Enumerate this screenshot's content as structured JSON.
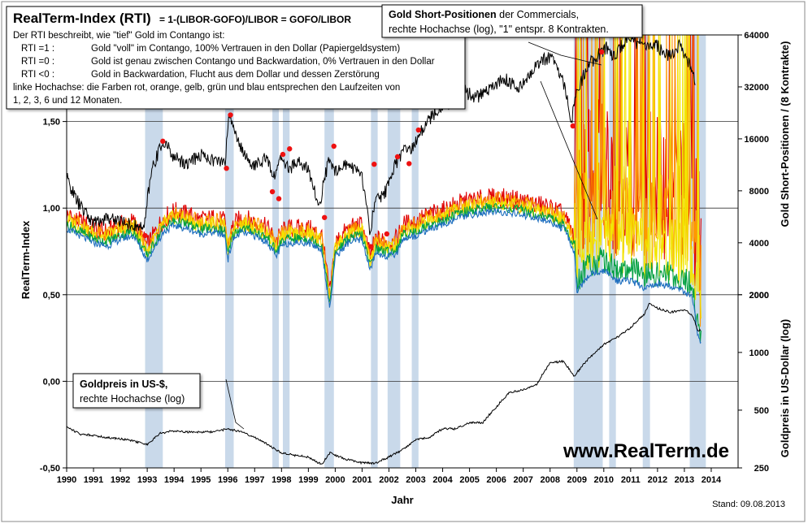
{
  "chart_data": {
    "type": "line",
    "title": "RealTerm-Index (RTI)",
    "formula": "= 1-(LIBOR-GOFO)/LIBOR = GOFO/LIBOR",
    "description_lines": [
      "Der RTI beschreibt, wie \"tief\" Gold im Contango ist:"
    ],
    "legend_rows": [
      {
        "label": "RTI =1 :",
        "text": "Gold \"voll\" im Contango, 100% Vertrauen in den Dollar (Papiergeldsystem)"
      },
      {
        "label": "RTI =0 :",
        "text": "Gold ist genau zwischen Contango und Backwardation, 0% Vertrauen in den Dollar"
      },
      {
        "label": "RTI <0 :",
        "text": "Gold in Backwardation, Flucht aus dem Dollar und dessen Zerstörung"
      }
    ],
    "note_lines": [
      "linke Hochachse: die Farben rot, orange, gelb, grün und blau entsprechen den Laufzeiten von",
      "1, 2, 3, 6 und 12 Monaten."
    ],
    "callout_short": {
      "bold": "Gold Short-Positionen",
      "rest": " der Commercials,",
      "line2": "rechte Hochachse (log), \"1\" entspr. 8 Kontrakten."
    },
    "callout_gold": {
      "bold": "Goldpreis in US-$,",
      "line2": "rechte Hochachse (log)"
    },
    "watermark": "www.RealTerm.de",
    "stand": "Stand:  09.08.2013",
    "xlabel": "Jahr",
    "ylabel_left": "RealTerm-Index",
    "ylabel_right_top": "Gold Short-Positionen / (8 Kontrakte)",
    "ylabel_right_bottom": "Goldpreis in US-Dollar (log)",
    "x_ticks": [
      "1990",
      "1991",
      "1992",
      "1993",
      "1994",
      "1995",
      "1996",
      "1997",
      "1998",
      "1999",
      "2000",
      "2001",
      "2002",
      "2003",
      "2004",
      "2005",
      "2006",
      "2007",
      "2008",
      "2009",
      "2010",
      "2011",
      "2012",
      "2013",
      "2014"
    ],
    "x_range": [
      1990,
      2015
    ],
    "y_left_ticks": [
      "-0,50",
      "0,00",
      "0,50",
      "1,00",
      "1,50"
    ],
    "y_left_values": [
      -0.5,
      0.0,
      0.5,
      1.0,
      1.5
    ],
    "y_left_range": [
      -0.5,
      2.0
    ],
    "y_right_top_ticks": [
      "2000",
      "4000",
      "8000",
      "16000",
      "32000",
      "64000"
    ],
    "y_right_top_values": [
      2000,
      4000,
      8000,
      16000,
      32000,
      64000
    ],
    "y_right_bottom_ticks": [
      "250",
      "500",
      "1000",
      "2000"
    ],
    "y_right_bottom_values": [
      250,
      500,
      1000,
      2000
    ],
    "shaded_periods": [
      [
        1992.92,
        1993.58
      ],
      [
        1995.9,
        1996.22
      ],
      [
        1997.66,
        1997.9
      ],
      [
        1998.05,
        1998.3
      ],
      [
        1999.6,
        1999.95
      ],
      [
        2001.33,
        2001.58
      ],
      [
        2001.95,
        2002.42
      ],
      [
        2002.85,
        2003.1
      ],
      [
        2008.88,
        2009.96
      ],
      [
        2010.2,
        2010.45
      ],
      [
        2011.45,
        2011.72
      ],
      [
        2013.2,
        2013.8
      ]
    ],
    "series_colors": {
      "rti_1m": "#e00000",
      "rti_2m": "#ff9900",
      "rti_3m": "#f2e600",
      "rti_6m": "#00a040",
      "rti_12m": "#1f6fbf",
      "short": "#000000",
      "gold": "#000000",
      "marker": "#ee1111",
      "shade": "#c9d9ea"
    },
    "series_names": [
      "1",
      "2",
      "3",
      "6",
      "12"
    ],
    "rti_12m": {
      "x": [
        1990.0,
        1990.5,
        1991.0,
        1991.5,
        1992.0,
        1992.5,
        1993.0,
        1993.3,
        1993.6,
        1994.0,
        1994.5,
        1995.0,
        1995.5,
        1995.9,
        1996.0,
        1996.2,
        1996.5,
        1997.0,
        1997.5,
        1997.8,
        1998.0,
        1998.3,
        1998.5,
        1999.0,
        1999.5,
        1999.8,
        2000.0,
        2000.5,
        2001.0,
        2001.3,
        2001.5,
        2002.0,
        2002.3,
        2002.5,
        2003.0,
        2003.5,
        2004.0,
        2004.5,
        2005.0,
        2005.5,
        2006.0,
        2006.5,
        2007.0,
        2007.5,
        2008.0,
        2008.5,
        2008.9,
        2009.0,
        2009.5,
        2010.0,
        2010.5,
        2011.0,
        2011.5,
        2012.0,
        2012.5,
        2013.0,
        2013.3,
        2013.5,
        2013.6
      ],
      "y": [
        0.88,
        0.84,
        0.8,
        0.78,
        0.82,
        0.84,
        0.7,
        0.78,
        0.86,
        0.9,
        0.88,
        0.85,
        0.86,
        0.84,
        0.7,
        0.82,
        0.86,
        0.84,
        0.8,
        0.72,
        0.78,
        0.8,
        0.8,
        0.8,
        0.76,
        0.42,
        0.72,
        0.8,
        0.82,
        0.64,
        0.74,
        0.72,
        0.74,
        0.82,
        0.84,
        0.88,
        0.9,
        0.94,
        0.96,
        0.97,
        0.98,
        0.97,
        0.96,
        0.94,
        0.92,
        0.88,
        0.75,
        0.52,
        0.62,
        0.64,
        0.58,
        0.58,
        0.54,
        0.56,
        0.55,
        0.52,
        0.48,
        0.26,
        0.22
      ]
    },
    "short_positions": {
      "x": [
        1990.0,
        1990.3,
        1990.6,
        1991.0,
        1991.5,
        1992.0,
        1992.5,
        1992.9,
        1993.2,
        1993.6,
        1994.0,
        1994.5,
        1995.0,
        1995.5,
        1995.9,
        1996.05,
        1996.3,
        1996.6,
        1997.0,
        1997.4,
        1997.7,
        1998.0,
        1998.3,
        1998.6,
        1999.0,
        1999.4,
        1999.8,
        2000.0,
        2000.5,
        2001.0,
        2001.3,
        2001.5,
        2001.9,
        2002.2,
        2002.5,
        2002.9,
        2003.3,
        2003.8,
        2004.3,
        2004.8,
        2005.3,
        2005.8,
        2006.3,
        2006.8,
        2007.2,
        2007.6,
        2008.0,
        2008.4,
        2008.8,
        2009.0,
        2009.4,
        2009.8,
        2010.1,
        2010.4,
        2010.8,
        2011.2,
        2011.6,
        2012.0,
        2012.4,
        2012.8,
        2013.1,
        2013.4
      ],
      "y": [
        9500,
        7400,
        6200,
        5200,
        5600,
        5400,
        5000,
        4900,
        11000,
        15500,
        12500,
        11500,
        13000,
        12000,
        11500,
        22000,
        17000,
        13000,
        11000,
        12500,
        9500,
        12500,
        10500,
        12000,
        10500,
        6200,
        12500,
        10500,
        11500,
        9500,
        4600,
        7000,
        8000,
        11000,
        13500,
        14000,
        19000,
        23500,
        26000,
        30000,
        28000,
        32000,
        36000,
        31000,
        37000,
        45000,
        48000,
        38000,
        20000,
        30000,
        42000,
        50000,
        54000,
        48000,
        60000,
        58000,
        57000,
        55000,
        48000,
        56000,
        46000,
        36000
      ]
    },
    "short_markers": {
      "x": [
        1992.92,
        1993.58,
        1995.95,
        1996.1,
        1997.66,
        1997.9,
        1998.05,
        1998.3,
        1999.6,
        1999.95,
        2001.33,
        2001.45,
        2001.92,
        2002.32,
        2002.75,
        2003.1,
        2008.85,
        2009.92
      ],
      "y": [
        4400,
        15500,
        10800,
        22000,
        7900,
        7200,
        13000,
        14000,
        5600,
        14500,
        3800,
        11400,
        4500,
        12600,
        11500,
        18000,
        19000,
        51000
      ]
    },
    "gold_price": {
      "x": [
        1990.0,
        1990.5,
        1991.0,
        1991.5,
        1992.0,
        1992.5,
        1993.0,
        1993.5,
        1994.0,
        1994.5,
        1995.0,
        1995.5,
        1996.0,
        1996.5,
        1997.0,
        1997.5,
        1998.0,
        1998.5,
        1999.0,
        1999.5,
        1999.8,
        2000.0,
        2000.5,
        2001.0,
        2001.5,
        2002.0,
        2002.5,
        2003.0,
        2003.5,
        2004.0,
        2004.5,
        2005.0,
        2005.5,
        2006.0,
        2006.5,
        2007.0,
        2007.5,
        2008.0,
        2008.5,
        2008.9,
        2009.5,
        2010.0,
        2010.5,
        2011.0,
        2011.5,
        2011.7,
        2012.0,
        2012.5,
        2013.0,
        2013.3,
        2013.5,
        2013.6
      ],
      "y": [
        410,
        375,
        370,
        360,
        355,
        345,
        330,
        380,
        390,
        385,
        385,
        385,
        400,
        385,
        360,
        330,
        300,
        290,
        285,
        260,
        300,
        290,
        275,
        265,
        265,
        285,
        310,
        350,
        360,
        400,
        400,
        430,
        430,
        520,
        620,
        640,
        680,
        880,
        900,
        750,
        950,
        1100,
        1200,
        1350,
        1580,
        1800,
        1700,
        1620,
        1670,
        1560,
        1300,
        1310
      ]
    }
  }
}
